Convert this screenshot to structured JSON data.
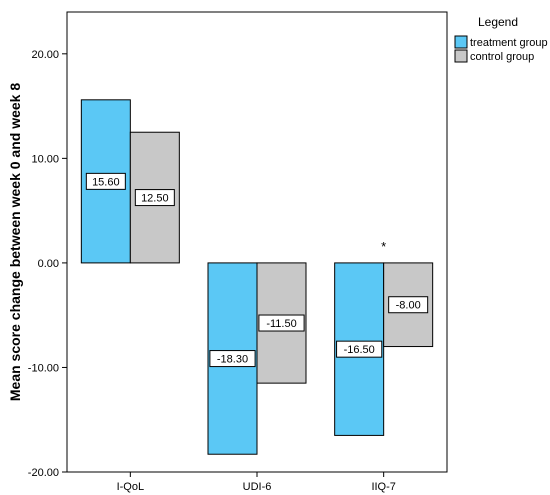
{
  "chart_data": {
    "type": "bar",
    "categories": [
      "I-QoL",
      "UDI-6",
      "IIQ-7"
    ],
    "series": [
      {
        "name": "treatment group",
        "values": [
          15.6,
          -18.3,
          -16.5
        ],
        "labels": [
          "15.60",
          "-18.30",
          "-16.50"
        ],
        "color": "#5bc8f5"
      },
      {
        "name": "control group",
        "values": [
          12.5,
          -11.5,
          -8.0
        ],
        "labels": [
          "12.50",
          "-11.50",
          "-8.00"
        ],
        "color": "#c8c8c8"
      }
    ],
    "ylabel": "Mean score change between week 0 and week 8",
    "xlabel": "",
    "ylim": [
      -20,
      24
    ],
    "yticks": [
      20,
      10,
      0,
      -10,
      -20
    ],
    "ytick_labels": [
      "20.00",
      "10.00",
      "0.00",
      "-10.00",
      "-20.00"
    ],
    "legend_title": "Legend",
    "legend_position": "top-right",
    "annotations": [
      {
        "category": "IIQ-7",
        "text": "*"
      }
    ]
  }
}
